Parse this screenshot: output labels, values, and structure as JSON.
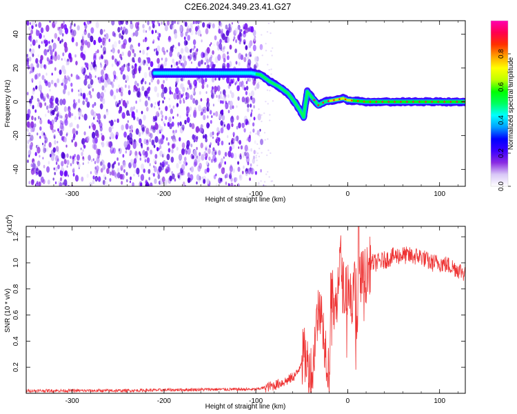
{
  "title": "C2E6.2024.349.23.41.G27",
  "chart_data": [
    {
      "type": "heatmap",
      "xlabel": "Height of straight line (km)",
      "ylabel": "Frequency (Hz)",
      "xlim": [
        -350,
        128
      ],
      "ylim": [
        -50,
        48
      ],
      "x_ticks": [
        -300,
        -200,
        -100,
        0,
        100
      ],
      "y_ticks": [
        -40,
        -20,
        0,
        20,
        40
      ],
      "noise_region_x": [
        -350,
        -100
      ],
      "frequency_track": [
        {
          "x": -210,
          "y": 17
        },
        {
          "x": -180,
          "y": 17
        },
        {
          "x": -150,
          "y": 17
        },
        {
          "x": -120,
          "y": 17
        },
        {
          "x": -105,
          "y": 17
        },
        {
          "x": -95,
          "y": 16
        },
        {
          "x": -85,
          "y": 12
        },
        {
          "x": -75,
          "y": 9
        },
        {
          "x": -65,
          "y": 5
        },
        {
          "x": -58,
          "y": 0
        },
        {
          "x": -52,
          "y": -5
        },
        {
          "x": -48,
          "y": -9
        },
        {
          "x": -44,
          "y": 6
        },
        {
          "x": -38,
          "y": 2
        },
        {
          "x": -32,
          "y": -2
        },
        {
          "x": -25,
          "y": 0
        },
        {
          "x": -15,
          "y": 1
        },
        {
          "x": -5,
          "y": 2
        },
        {
          "x": 0,
          "y": 1
        },
        {
          "x": 20,
          "y": 0
        },
        {
          "x": 60,
          "y": 0
        },
        {
          "x": 128,
          "y": 0
        }
      ],
      "colorbar": {
        "label": "Normalized spectral amplitude",
        "range": [
          0,
          1
        ],
        "ticks": [
          "0.0",
          "0.2",
          "0.4",
          "0.6",
          "0.8"
        ],
        "colors": [
          "#ffffff",
          "#d9c8f7",
          "#8a2be2",
          "#3b00ff",
          "#0000ff",
          "#00a0ff",
          "#00ffff",
          "#00ff60",
          "#00ff00",
          "#c0ff00",
          "#ffff00",
          "#ffa000",
          "#ff3000",
          "#ff0050",
          "#ff00b0"
        ]
      }
    },
    {
      "type": "line",
      "xlabel": "Height of straight line (km)",
      "ylabel": "SNR (10 * v/v)",
      "yscale_label": "(x10",
      "yscale_exp": "4",
      "xlim": [
        -350,
        128
      ],
      "ylim": [
        0,
        1.28
      ],
      "x_ticks": [
        -300,
        -200,
        -100,
        0,
        100
      ],
      "y_ticks": [
        0.2,
        0.4,
        0.6,
        0.8,
        1.0,
        1.2
      ],
      "y_tick_labels": [
        "0.2",
        "0.4",
        "0.6",
        "0.8",
        "1.0",
        "1.2"
      ],
      "color": "#ee3333",
      "envelope": {
        "x": [
          -350,
          -300,
          -250,
          -200,
          -150,
          -120,
          -100,
          -80,
          -65,
          -55,
          -48,
          -42,
          -38,
          -35,
          -30,
          -25,
          -20,
          -18,
          -15,
          -12,
          -8,
          -5,
          0,
          5,
          10,
          12,
          15,
          20,
          25,
          30,
          40,
          50,
          60,
          70,
          80,
          90,
          100,
          110,
          120,
          128
        ],
        "y": [
          0.02,
          0.02,
          0.02,
          0.025,
          0.03,
          0.03,
          0.03,
          0.06,
          0.1,
          0.15,
          0.3,
          0.2,
          0.15,
          0.5,
          0.7,
          0.4,
          0.15,
          0.9,
          0.6,
          0.7,
          1.05,
          0.8,
          0.85,
          0.7,
          0.95,
          0.8,
          0.9,
          0.9,
          1.0,
          1.0,
          1.02,
          1.05,
          1.06,
          1.05,
          1.05,
          1.0,
          1.0,
          0.98,
          0.95,
          0.92
        ]
      }
    }
  ]
}
